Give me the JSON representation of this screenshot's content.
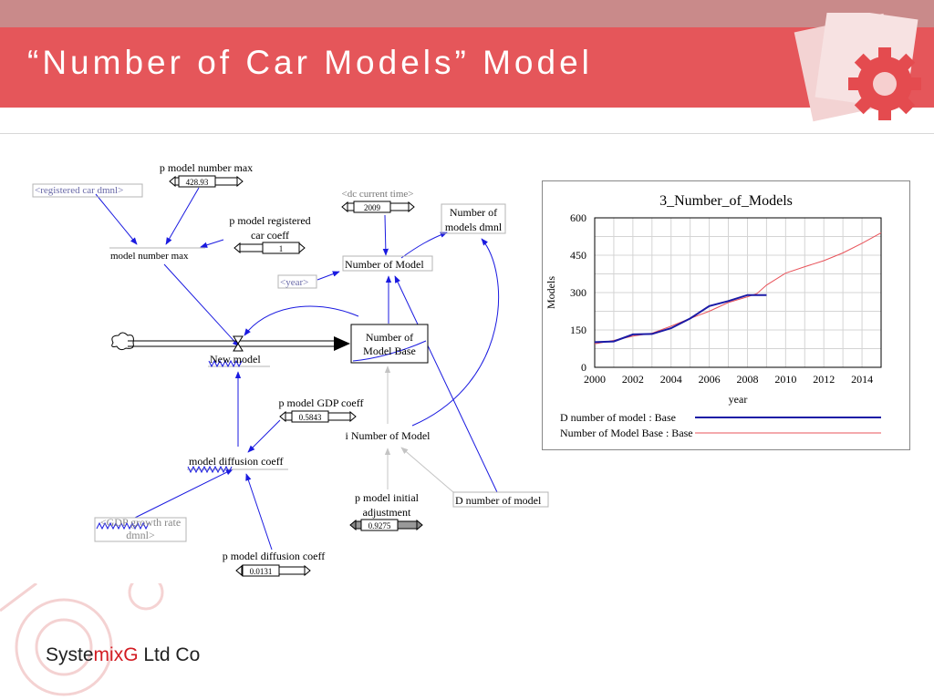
{
  "slide": {
    "title": "“Number of Car Models” Model",
    "brand": {
      "part1": "Syste",
      "part2": "mix",
      "part3": "G",
      "part4": " Ltd Co"
    }
  },
  "diagram": {
    "registered_car": "<registered car dmnl>",
    "p_model_number_max": "p model number max",
    "p_model_number_max_value": "428.93",
    "model_number_max": "model number max",
    "p_model_registered_l1": "p model registered",
    "p_model_registered_l2": "car coeff",
    "p_model_registered_value": "1",
    "dc_current_time": "<dc current time>",
    "dc_current_time_value": "2009",
    "number_of_models_dmnl_l1": "Number of",
    "number_of_models_dmnl_l2": "models dmnl",
    "number_of_model": "Number of Model",
    "year_shadow": "<year>",
    "number_of_model_base_l1": "Number of",
    "number_of_model_base_l2": "Model Base",
    "new_model": "New model",
    "p_model_gdp_coeff": "p model GDP coeff",
    "p_model_gdp_coeff_value": "0.5843",
    "i_number_of_model": "i Number of Model",
    "model_diffusion_coeff": "model diffusion coeff",
    "d_number_of_model": "D number of model",
    "p_model_initial_l1": "p model initial",
    "p_model_initial_l2": "adjustment",
    "p_model_initial_value": "0.9275",
    "gdp_growth_rate_l1": "<GDP growth rate",
    "gdp_growth_rate_l2": "dmnl>",
    "p_model_diffusion_coeff": "p model diffusion coeff",
    "p_model_diffusion_coeff_value": "0.0131"
  },
  "chart_data": {
    "type": "line",
    "title": "3_Number_of_Models",
    "xlabel": "year",
    "ylabel": "Models",
    "xlim": [
      2000,
      2015
    ],
    "ylim": [
      0,
      600
    ],
    "x_ticks": [
      "2000",
      "2002",
      "2004",
      "2006",
      "2008",
      "2010",
      "2012",
      "2014"
    ],
    "y_ticks": [
      "0",
      "150",
      "300",
      "450",
      "600"
    ],
    "grid": true,
    "legend_placement": "bottom",
    "series": [
      {
        "name": "D number of model : Base",
        "color": "#1a1aa6",
        "x": [
          2000,
          2001,
          2002,
          2003,
          2004,
          2005,
          2006,
          2007,
          2008,
          2009
        ],
        "y": [
          101,
          104,
          132,
          134,
          157,
          196,
          246,
          266,
          290,
          290
        ]
      },
      {
        "name": "Number of Model Base : Base",
        "color": "#e8535a",
        "x": [
          2000,
          2001,
          2002,
          2003,
          2004,
          2005,
          2006,
          2007,
          2008,
          2008.5,
          2009,
          2010,
          2011,
          2012,
          2013,
          2014,
          2015
        ],
        "y": [
          94,
          108,
          125,
          137,
          165,
          196,
          225,
          260,
          283,
          296,
          330,
          378,
          404,
          428,
          459,
          498,
          540
        ]
      }
    ]
  }
}
